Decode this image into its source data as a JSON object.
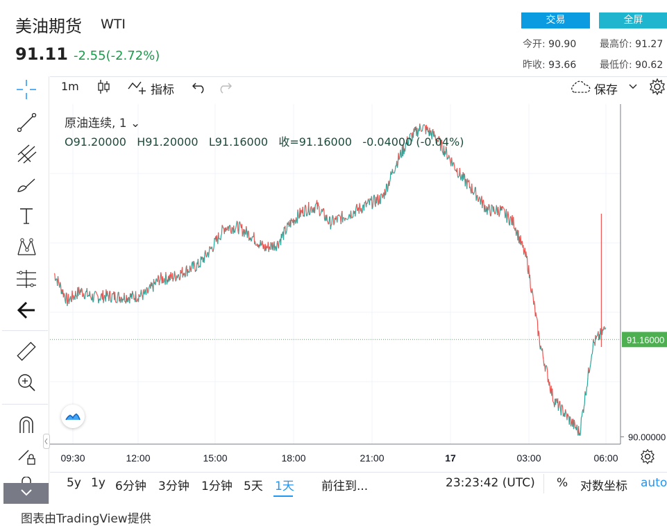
{
  "header": {
    "title": "美油期货",
    "symbol": "WTI",
    "price": "91.11",
    "change": "-2.55(-2.72%)",
    "trade_button": "交易",
    "fullscreen_button": "全屏",
    "open_label": "今开:",
    "open_value": "90.90",
    "high_label": "最高价:",
    "high_value": "91.27",
    "prev_close_label": "昨收:",
    "prev_close_value": "93.66",
    "low_label": "最低价:",
    "low_value": "90.62"
  },
  "toolbar": {
    "interval": "1m",
    "indicators": "指标",
    "save": "保存"
  },
  "legend": {
    "series_name": "原油连续, 1",
    "ohlc": "O91.20000   H91.20000   L91.16000   收=91.16000   -0.04000 (-0.04%)"
  },
  "periods": [
    "5y",
    "1y",
    "6分钟",
    "3分钟",
    "1分钟",
    "5天",
    "1天"
  ],
  "active_period": "1天",
  "goto": "前往到...",
  "clock": "23:23:42 (UTC)",
  "percent_toggle": "%",
  "log_toggle": "对数坐标",
  "auto_toggle": "auto",
  "footer": "图表由TradingView提供",
  "colors": {
    "up": "#26a69a",
    "down": "#ef5350",
    "line": "#6a7d8e",
    "accent": "#2196f3",
    "price_label": "#4caf50"
  },
  "chart_data": {
    "type": "line",
    "x_ticks": [
      "09:30",
      "12:00",
      "15:00",
      "18:00",
      "21:00",
      "17",
      "03:00",
      "06:00"
    ],
    "y_ticks": [
      "90.00000"
    ],
    "last_price_label": "91.16000",
    "x": [
      "09:30",
      "10:00",
      "10:30",
      "11:00",
      "11:30",
      "12:00",
      "12:30",
      "13:00",
      "13:30",
      "14:00",
      "14:30",
      "15:00",
      "15:30",
      "16:00",
      "16:30",
      "17:00",
      "17:30",
      "18:00",
      "18:30",
      "19:00",
      "19:30",
      "20:00",
      "20:30",
      "21:00",
      "21:30",
      "22:00",
      "22:30",
      "23:00",
      "23:30",
      "00:00",
      "00:30",
      "01:00",
      "01:30",
      "02:00",
      "02:30",
      "03:00",
      "03:30",
      "04:00",
      "04:30",
      "05:00",
      "05:30",
      "06:00",
      "06:30"
    ],
    "values": [
      91.95,
      91.62,
      91.74,
      91.66,
      91.68,
      91.67,
      91.67,
      91.7,
      91.88,
      91.9,
      91.98,
      92.05,
      92.25,
      92.5,
      92.5,
      92.4,
      92.25,
      92.3,
      92.55,
      92.7,
      92.75,
      92.55,
      92.62,
      92.7,
      92.78,
      92.85,
      93.25,
      93.55,
      93.7,
      93.58,
      93.35,
      93.1,
      92.92,
      92.7,
      92.7,
      92.55,
      92.1,
      91.1,
      90.45,
      90.25,
      90.05,
      91.1,
      91.3
    ]
  }
}
